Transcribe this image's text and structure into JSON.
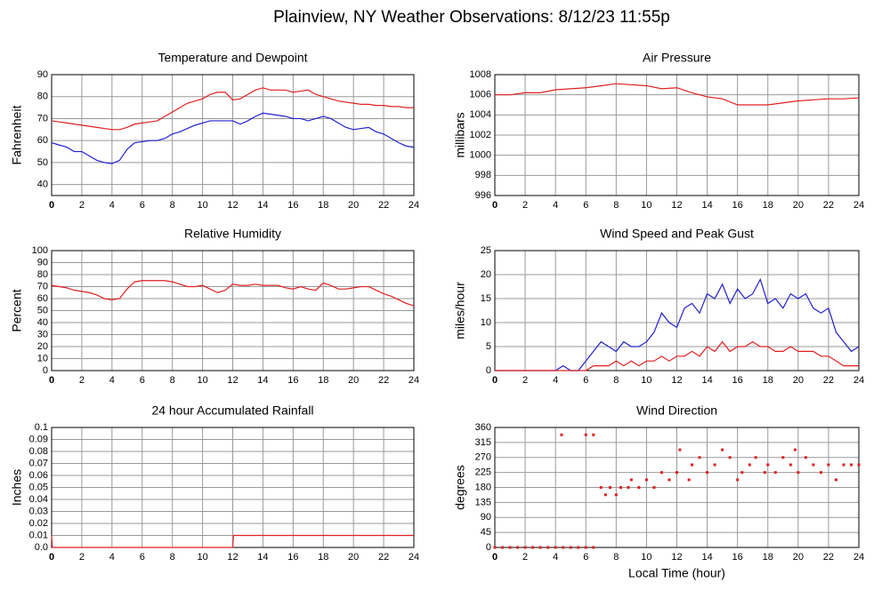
{
  "title": "Plainview, NY Weather Observations: 8/12/23 11:55p",
  "chart_data": [
    {
      "type": "line",
      "title": "Temperature and Dewpoint",
      "ylabel": "Fahrenheit",
      "x": [
        0,
        0.5,
        1,
        1.5,
        2,
        2.5,
        3,
        3.5,
        4,
        4.5,
        5,
        5.5,
        6,
        6.5,
        7,
        7.5,
        8,
        8.5,
        9,
        9.5,
        10,
        10.5,
        11,
        11.5,
        12,
        12.5,
        13,
        13.5,
        14,
        14.5,
        15,
        15.5,
        16,
        16.5,
        17,
        17.5,
        18,
        18.5,
        19,
        19.5,
        20,
        20.5,
        21,
        21.5,
        22,
        22.5,
        23,
        23.5,
        24
      ],
      "series": [
        {
          "color": "#e02020",
          "values": [
            69,
            68.5,
            68,
            67.5,
            67,
            66.5,
            66,
            65.5,
            65,
            65,
            66,
            67.5,
            68,
            68.5,
            69,
            71,
            73,
            75,
            77,
            78,
            79,
            81,
            82,
            82,
            78.5,
            79,
            81,
            83,
            84,
            83,
            83,
            83,
            82,
            82.5,
            83,
            81,
            80,
            79,
            78,
            77.5,
            77,
            76.5,
            76.5,
            76,
            76,
            75.5,
            75.5,
            75,
            75
          ]
        },
        {
          "color": "#2020d0",
          "values": [
            59,
            58,
            57,
            55,
            55,
            53,
            51,
            50,
            49.5,
            51,
            56,
            59,
            59.5,
            60,
            60,
            61,
            63,
            64,
            65.5,
            67,
            68,
            69,
            69,
            69,
            69,
            67.5,
            69,
            71,
            72.5,
            72,
            71.5,
            71,
            70,
            70,
            69,
            70,
            71,
            70,
            68,
            66,
            65,
            65.5,
            66,
            64,
            63,
            61,
            59,
            57.5,
            57
          ]
        }
      ],
      "xlim": [
        0,
        24
      ],
      "xticks": [
        0,
        2,
        4,
        6,
        8,
        10,
        12,
        14,
        16,
        18,
        20,
        22,
        24
      ],
      "ylim": [
        35,
        90
      ],
      "yticks": [
        40,
        50,
        60,
        70,
        80,
        90
      ],
      "grid": true
    },
    {
      "type": "line",
      "title": "Air Pressure",
      "ylabel": "millibars",
      "x": [
        0,
        1,
        2,
        3,
        4,
        5,
        6,
        7,
        8,
        9,
        10,
        11,
        12,
        13,
        14,
        15,
        16,
        17,
        18,
        19,
        20,
        21,
        22,
        23,
        24
      ],
      "series": [
        {
          "color": "#e02020",
          "values": [
            1006,
            1006,
            1006.2,
            1006.2,
            1006.5,
            1006.6,
            1006.7,
            1006.9,
            1007.1,
            1007,
            1006.9,
            1006.6,
            1006.7,
            1006.2,
            1005.8,
            1005.6,
            1005,
            1005,
            1005,
            1005.2,
            1005.4,
            1005.5,
            1005.6,
            1005.6,
            1005.7
          ]
        }
      ],
      "xlim": [
        0,
        24
      ],
      "xticks": [
        0,
        2,
        4,
        6,
        8,
        10,
        12,
        14,
        16,
        18,
        20,
        22,
        24
      ],
      "ylim": [
        996,
        1008
      ],
      "yticks": [
        996,
        998,
        1000,
        1002,
        1004,
        1006,
        1008
      ],
      "grid": true
    },
    {
      "type": "line",
      "title": "Relative Humidity",
      "ylabel": "Percent",
      "x": [
        0,
        0.5,
        1,
        1.5,
        2,
        2.5,
        3,
        3.5,
        4,
        4.5,
        5,
        5.5,
        6,
        6.5,
        7,
        7.5,
        8,
        8.5,
        9,
        9.5,
        10,
        10.5,
        11,
        11.5,
        12,
        12.5,
        13,
        13.5,
        14,
        14.5,
        15,
        15.5,
        16,
        16.5,
        17,
        17.5,
        18,
        18.5,
        19,
        19.5,
        20,
        20.5,
        21,
        21.5,
        22,
        22.5,
        23,
        23.5,
        24
      ],
      "series": [
        {
          "color": "#e02020",
          "values": [
            71,
            70,
            69,
            67,
            66,
            65,
            63,
            60,
            59,
            60,
            68,
            74,
            75,
            75,
            75,
            75,
            74,
            72,
            70,
            70,
            71,
            68,
            65,
            67,
            72,
            71,
            71,
            72,
            71,
            71,
            71,
            69,
            68,
            70,
            68,
            67,
            73,
            71,
            68,
            68,
            69,
            70,
            70,
            67,
            64,
            62,
            59,
            56,
            54
          ]
        }
      ],
      "xlim": [
        0,
        24
      ],
      "xticks": [
        0,
        2,
        4,
        6,
        8,
        10,
        12,
        14,
        16,
        18,
        20,
        22,
        24
      ],
      "ylim": [
        0,
        100
      ],
      "yticks": [
        0,
        10,
        20,
        30,
        40,
        50,
        60,
        70,
        80,
        90,
        100
      ],
      "grid": true
    },
    {
      "type": "line",
      "title": "Wind Speed and Peak Gust",
      "ylabel": "miles/hour",
      "x": [
        0,
        0.5,
        1,
        1.5,
        2,
        2.5,
        3,
        3.5,
        4,
        4.5,
        5,
        5.5,
        6,
        6.5,
        7,
        7.5,
        8,
        8.5,
        9,
        9.5,
        10,
        10.5,
        11,
        11.5,
        12,
        12.5,
        13,
        13.5,
        14,
        14.5,
        15,
        15.5,
        16,
        16.5,
        17,
        17.5,
        18,
        18.5,
        19,
        19.5,
        20,
        20.5,
        21,
        21.5,
        22,
        22.5,
        23,
        23.5,
        24
      ],
      "series": [
        {
          "color": "#2020d0",
          "values": [
            0,
            0,
            0,
            0,
            0,
            0,
            0,
            0,
            0,
            1,
            0,
            0,
            2,
            4,
            6,
            5,
            4,
            6,
            5,
            5,
            6,
            8,
            12,
            10,
            9,
            13,
            14,
            12,
            16,
            15,
            18,
            14,
            17,
            15,
            16,
            19,
            14,
            15,
            13,
            16,
            15,
            16,
            13,
            12,
            13,
            8,
            6,
            4,
            5
          ]
        },
        {
          "color": "#e02020",
          "values": [
            0,
            0,
            0,
            0,
            0,
            0,
            0,
            0,
            0,
            0,
            0,
            0,
            0,
            1,
            1,
            1,
            2,
            1,
            2,
            1,
            2,
            2,
            3,
            2,
            3,
            3,
            4,
            3,
            5,
            4,
            6,
            4,
            5,
            5,
            6,
            5,
            5,
            4,
            4,
            5,
            4,
            4,
            4,
            3,
            3,
            2,
            1,
            1,
            1
          ]
        }
      ],
      "xlim": [
        0,
        24
      ],
      "xticks": [
        0,
        2,
        4,
        6,
        8,
        10,
        12,
        14,
        16,
        18,
        20,
        22,
        24
      ],
      "ylim": [
        0,
        25
      ],
      "yticks": [
        0,
        5,
        10,
        15,
        20,
        25
      ],
      "grid": true
    },
    {
      "type": "line",
      "title": "24 hour Accumulated Rainfall",
      "ylabel": "Inches",
      "x": [
        0,
        0.05,
        12,
        12.05,
        24
      ],
      "series": [
        {
          "color": "#e02020",
          "values": [
            0.01,
            0,
            0,
            0.01,
            0.01
          ]
        }
      ],
      "xlim": [
        0,
        24
      ],
      "xticks": [
        0,
        2,
        4,
        6,
        8,
        10,
        12,
        14,
        16,
        18,
        20,
        22,
        24
      ],
      "ylim": [
        0,
        0.1
      ],
      "yticks": [
        {
          "value": 0,
          "label": "0.0"
        },
        0.01,
        0.02,
        0.03,
        0.04,
        0.05,
        0.06,
        0.07,
        0.08,
        0.09,
        0.1
      ],
      "grid": true
    },
    {
      "type": "scatter",
      "title": "Wind Direction",
      "ylabel": "degrees",
      "xlabel": "Local Time (hour)",
      "x": [
        0,
        0.5,
        1,
        1.5,
        2,
        2.5,
        3,
        3.5,
        4,
        4.5,
        5,
        5.5,
        6,
        6.5,
        4.4,
        6,
        6.5,
        7,
        7.3,
        7.6,
        8,
        8.3,
        8.8,
        9,
        9.5,
        10,
        10.5,
        11,
        11.5,
        12,
        12.2,
        12.8,
        13,
        13.5,
        14,
        14.5,
        15,
        15.5,
        16,
        16.3,
        16.8,
        17.2,
        17.8,
        18,
        18.5,
        19,
        19.5,
        19.8,
        20,
        20.5,
        21,
        21.5,
        22,
        22.5,
        23,
        23.5,
        24
      ],
      "y": [
        0,
        0,
        0,
        0,
        0,
        0,
        0,
        0,
        0,
        0,
        0,
        0,
        0,
        0,
        338,
        338,
        338,
        180,
        158,
        180,
        158,
        180,
        180,
        203,
        180,
        203,
        180,
        225,
        203,
        225,
        293,
        203,
        248,
        270,
        225,
        248,
        293,
        270,
        203,
        225,
        248,
        270,
        225,
        248,
        225,
        270,
        248,
        293,
        225,
        270,
        248,
        225,
        248,
        203,
        248,
        248,
        248
      ],
      "color": "#e02020",
      "xlim": [
        0,
        24
      ],
      "xticks": [
        0,
        2,
        4,
        6,
        8,
        10,
        12,
        14,
        16,
        18,
        20,
        22,
        24
      ],
      "ylim": [
        0,
        360
      ],
      "yticks": [
        0,
        45,
        90,
        135,
        180,
        225,
        270,
        315,
        360
      ],
      "grid": true
    }
  ]
}
